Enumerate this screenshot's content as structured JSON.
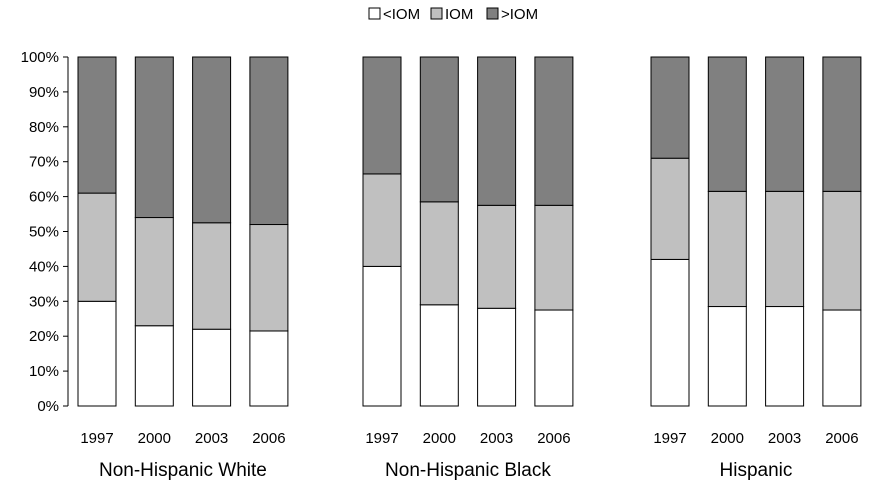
{
  "chart_data": {
    "type": "bar",
    "stacked": true,
    "percent": true,
    "title": "",
    "xlabel": "",
    "ylabel": "",
    "ylim": [
      0,
      100
    ],
    "yticks": [
      "0%",
      "10%",
      "20%",
      "30%",
      "40%",
      "50%",
      "60%",
      "70%",
      "80%",
      "90%",
      "100%"
    ],
    "legend_position": "top",
    "legend": [
      {
        "label": "<IOM",
        "color": "#ffffff"
      },
      {
        "label": "IOM",
        "color": "#c0c0c0"
      },
      {
        "label": ">IOM",
        "color": "#808080"
      }
    ],
    "groups": [
      {
        "name": "Non-Hispanic White",
        "years": [
          "1997",
          "2000",
          "2003",
          "2006"
        ]
      },
      {
        "name": "Non-Hispanic Black",
        "years": [
          "1997",
          "2000",
          "2003",
          "2006"
        ]
      },
      {
        "name": "Hispanic",
        "years": [
          "1997",
          "2000",
          "2003",
          "2006"
        ]
      }
    ],
    "categories": [
      "Non-Hispanic White 1997",
      "Non-Hispanic White 2000",
      "Non-Hispanic White 2003",
      "Non-Hispanic White 2006",
      "Non-Hispanic Black 1997",
      "Non-Hispanic Black 2000",
      "Non-Hispanic Black 2003",
      "Non-Hispanic Black 2006",
      "Hispanic 1997",
      "Hispanic 2000",
      "Hispanic 2003",
      "Hispanic 2006"
    ],
    "series": [
      {
        "name": "<IOM",
        "color": "#ffffff",
        "values": [
          30,
          23,
          22,
          21.5,
          40,
          29,
          28,
          27.5,
          42,
          28.5,
          28.5,
          27.5
        ]
      },
      {
        "name": "IOM",
        "color": "#c0c0c0",
        "values": [
          31,
          31,
          30.5,
          30.5,
          26.5,
          29.5,
          29.5,
          30,
          29,
          33,
          33,
          34
        ]
      },
      {
        "name": ">IOM",
        "color": "#808080",
        "values": [
          39,
          46,
          47.5,
          48,
          33.5,
          41.5,
          42.5,
          42.5,
          29,
          38.5,
          38.5,
          38.5
        ]
      }
    ]
  }
}
